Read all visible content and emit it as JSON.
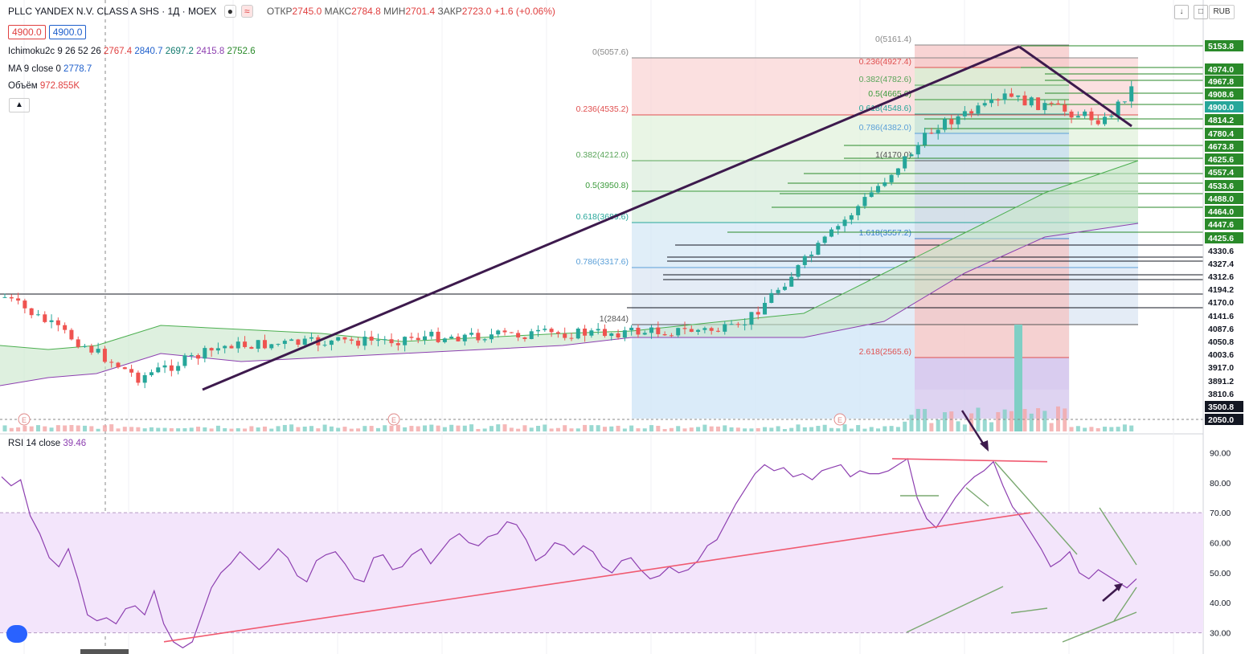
{
  "header": {
    "symbol": "PLLC YANDEX N.V. CLASS A SHS · 1Д · MOEX",
    "open_label": "ОТКР",
    "open": "2745.0",
    "high_label": "МАКС",
    "high": "2784.8",
    "low_label": "МИН",
    "low": "2701.4",
    "close_label": "ЗАКР",
    "close": "2723.0",
    "change": "+1.6 (+0.06%)",
    "bid": "4900.0",
    "ask": "4900.0",
    "currency": "RUB"
  },
  "indicators": {
    "ichimoku": {
      "name": "Ichimoku2c 9 26 52 26",
      "v1": "2767.4",
      "v2": "2840.7",
      "v3": "2697.2",
      "v4": "2415.8",
      "v5": "2752.6"
    },
    "ma": {
      "name": "MA 9 close 0",
      "value": "2778.7"
    },
    "volume": {
      "name": "Объём",
      "value": "972.855K"
    },
    "rsi": {
      "name": "RSI 14 close",
      "value": "39.46"
    }
  },
  "colors": {
    "up": "#26a69a",
    "down": "#ef5350",
    "trend": "#3d1a4d",
    "rsi": "#8d3fb0",
    "rsi_trend": "#f05a70",
    "accent": "#2962ff"
  },
  "chart_data": [
    {
      "type": "candlestick",
      "price_axis_labels": [
        "5153.8",
        "4974.0",
        "4967.8",
        "4908.6",
        "4900.0",
        "4814.2",
        "4780.4",
        "4673.8",
        "4625.6",
        "4557.4",
        "4533.6",
        "4488.0",
        "4464.0",
        "4447.6",
        "4425.6",
        "4330.6",
        "4327.4",
        "4312.6",
        "4194.2",
        "4170.0",
        "4141.6",
        "4087.6",
        "4050.8",
        "4003.6",
        "3917.0",
        "3891.2",
        "3810.6",
        "3500.8",
        "2050.0"
      ],
      "current_price": "4900.0",
      "fib_left": [
        {
          "label": "0(5057.6)",
          "value": 5057.6
        },
        {
          "label": "0.236(4535.2)",
          "value": 4535.2
        },
        {
          "label": "0.382(4212.0)",
          "value": 4212.0
        },
        {
          "label": "0.5(3950.8)",
          "value": 3950.8
        },
        {
          "label": "0.618(3689.6)",
          "value": 3689.6
        },
        {
          "label": "0.786(3317.6)",
          "value": 3317.6
        },
        {
          "label": "1(2844)",
          "value": 2844
        }
      ],
      "fib_right": [
        {
          "label": "0(5161.4)",
          "value": 5161.4
        },
        {
          "label": "0.236(4927.4)",
          "value": 4927.4
        },
        {
          "label": "0.382(4782.6)",
          "value": 4782.6
        },
        {
          "label": "0.5(4665.6)",
          "value": 4665.6
        },
        {
          "label": "0.618(4548.6)",
          "value": 4548.6
        },
        {
          "label": "0.786(4382.0)",
          "value": 4382.0
        },
        {
          "label": "1(4170.0)",
          "value": 4170.0
        },
        {
          "label": "1.618(3557.2)",
          "value": 3557.2
        },
        {
          "label": "2.618(2565.6)",
          "value": 2565.6
        }
      ]
    },
    {
      "type": "line",
      "name": "RSI 14 close",
      "y_ticks": [
        "90.00",
        "80.00",
        "70.00",
        "60.00",
        "50.00",
        "40.00",
        "30.00"
      ],
      "band": [
        30,
        70
      ],
      "ylim": [
        24,
        92
      ],
      "values": [
        82,
        79,
        81,
        69,
        63,
        55,
        52,
        58,
        48,
        36,
        34,
        35,
        33,
        38,
        39,
        36,
        44,
        33,
        27,
        25,
        27,
        36,
        45,
        50,
        53,
        57,
        54,
        51,
        54,
        58,
        55,
        49,
        47,
        54,
        56,
        57,
        53,
        48,
        47,
        55,
        56,
        51,
        52,
        56,
        58,
        53,
        57,
        61,
        63,
        60,
        59,
        62,
        63,
        67,
        66,
        61,
        54,
        56,
        60,
        59,
        56,
        59,
        57,
        52,
        50,
        54,
        55,
        51,
        48,
        49,
        52,
        50,
        51,
        54,
        59,
        61,
        67,
        73,
        78,
        83,
        86,
        84,
        85,
        82,
        83,
        81,
        84,
        85,
        86,
        82,
        84,
        83,
        83,
        84,
        86,
        88,
        75,
        68,
        65,
        70,
        75,
        79,
        82,
        84,
        87,
        79,
        72,
        68,
        63,
        58,
        52,
        54,
        57,
        50,
        48,
        51,
        49,
        47,
        45,
        48
      ]
    }
  ]
}
